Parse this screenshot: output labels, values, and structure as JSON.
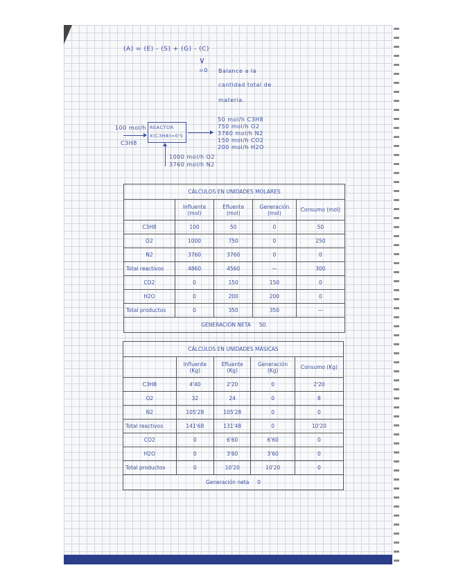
{
  "equation": "(A) = (E) - (S) + (G) - (C)",
  "equals_zero": "=0",
  "note": [
    "Balance a la",
    "cantidad total de",
    "materia."
  ],
  "diagram": {
    "input_flow": "100 mol/h",
    "input_species": "C3H8",
    "reactor_label": "REACTOR",
    "conversion": "X(C3H8)=0'5",
    "outputs": [
      "50 mol/h  C3H8",
      "750 mol/h  O2",
      "3760 mol/h  N2",
      "150 mol/h  CO2",
      "200 mol/h  H2O"
    ],
    "air_inputs": [
      "1000 mol/h  O2",
      "3760 mol/h  N2"
    ]
  },
  "table_molar": {
    "title": "CÁLCULOS EN UNIDADES MOLARES",
    "headers": [
      "",
      "Influente (mol)",
      "Efluente (mol)",
      "Generación (mol)",
      "Consumo (mol)"
    ],
    "rows": [
      [
        "C3H8",
        "100",
        "50",
        "0",
        "50"
      ],
      [
        "O2",
        "1000",
        "750",
        "0",
        "250"
      ],
      [
        "N2",
        "3760",
        "3760",
        "0",
        "0"
      ],
      [
        "Total reactivos",
        "4860",
        "4560",
        "—",
        "300"
      ],
      [
        "CO2",
        "0",
        "150",
        "150",
        "0"
      ],
      [
        "H2O",
        "0",
        "200",
        "200",
        "0"
      ],
      [
        "Total productos",
        "0",
        "350",
        "350",
        "—"
      ]
    ],
    "footer_label": "GENERACIÓN NETA",
    "footer_value": "50."
  },
  "table_mass": {
    "title": "CÁLCULOS EN UNIDADES MÁSICAS",
    "headers": [
      "",
      "Influente (Kg)",
      "Efluente (Kg)",
      "Generación (Kg)",
      "Consumo (Kg)"
    ],
    "rows": [
      [
        "C3H8",
        "4'40",
        "2'20",
        "0",
        "2'20"
      ],
      [
        "O2",
        "32",
        "24",
        "0",
        "8"
      ],
      [
        "N2",
        "105'28",
        "105'28",
        "0",
        "0"
      ],
      [
        "Total reactivos",
        "141'68",
        "131'48",
        "0",
        "10'20"
      ],
      [
        "CO2",
        "0",
        "6'60",
        "6'60",
        "0"
      ],
      [
        "H2O",
        "0",
        "3'60",
        "3'60",
        "0"
      ],
      [
        "Total productos",
        "0",
        "10'20",
        "10'20",
        "0"
      ]
    ],
    "footer_label": "Generación neta",
    "footer_value": "0"
  },
  "colors": {
    "ink": "#3b4f9c",
    "grid": "#d3d7de",
    "paper": "#f7f8fa"
  }
}
